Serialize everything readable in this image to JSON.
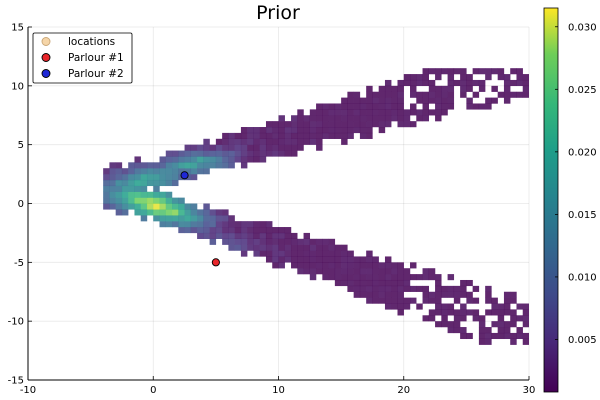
{
  "chart_data": {
    "type": "heatmap",
    "title": "Prior",
    "xlabel": "",
    "ylabel": "",
    "xlim": [
      -10,
      30
    ],
    "ylim": [
      -15,
      15
    ],
    "x_ticks": [
      -10,
      0,
      10,
      20,
      30
    ],
    "y_ticks": [
      -15,
      -10,
      -5,
      0,
      5,
      10,
      15
    ],
    "x_tick_labels": [
      "-10",
      "0",
      "10",
      "20",
      "30"
    ],
    "y_tick_labels": [
      "-15",
      "-10",
      "-5",
      "0",
      "5",
      "10",
      "15"
    ],
    "grid": true,
    "colormap": "viridis",
    "colorbar": {
      "min": 0.0008,
      "max": 0.0315,
      "ticks": [
        0.005,
        0.01,
        0.015,
        0.02,
        0.025,
        0.03
      ],
      "tick_labels": [
        "0.005",
        "0.010",
        "0.015",
        "0.020",
        "0.025",
        "0.030"
      ]
    },
    "heatmap_shape": "boomerang: upper arm from apex (-4, 1.3) to (27, 10.7), lower arm from apex to (31, -11.2); highest density near (0, 0)",
    "legend": {
      "position": "top-left",
      "entries": [
        {
          "label": "locations",
          "color": "#f5d5a8",
          "marker": "circle"
        },
        {
          "label": "Parlour #1",
          "color": "#e8262b",
          "marker": "circle"
        },
        {
          "label": "Parlour #2",
          "color": "#1f28d6",
          "marker": "circle"
        }
      ]
    },
    "series": [
      {
        "name": "Parlour #1",
        "points": [
          [
            5,
            -5
          ]
        ],
        "color": "#e8262b"
      },
      {
        "name": "Parlour #2",
        "points": [
          [
            2.5,
            2.4
          ]
        ],
        "color": "#1f28d6"
      }
    ]
  }
}
